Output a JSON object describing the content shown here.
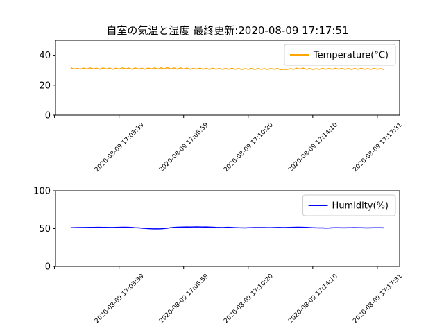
{
  "chart_data": [
    {
      "type": "line",
      "title": "自室の気温と湿度  最終更新:2020-08-09 17:17:51",
      "x": [
        0,
        1,
        2,
        3,
        4,
        5,
        6,
        7,
        8,
        9,
        10,
        11,
        12,
        13,
        14,
        15,
        16,
        17,
        18,
        19,
        20,
        21,
        22,
        23,
        24,
        25,
        26,
        27,
        28,
        29,
        30,
        31,
        32,
        33,
        34,
        35,
        36,
        37,
        38,
        39,
        40,
        41,
        42,
        43,
        44,
        45,
        46,
        47,
        48,
        49,
        50,
        51,
        52,
        53,
        54,
        55,
        56,
        57,
        58,
        59,
        60,
        61,
        62,
        63,
        64,
        65,
        66,
        67,
        68,
        69,
        70,
        71,
        72,
        73,
        74,
        75,
        76,
        77,
        78,
        79,
        80,
        81,
        82,
        83,
        84,
        85,
        86,
        87,
        88,
        89,
        90,
        91,
        92,
        93,
        94,
        95,
        96,
        97
      ],
      "series": [
        {
          "name": "Temperature(°C)",
          "color": "#ffa500",
          "values": [
            31.6,
            30.8,
            31.2,
            30.7,
            31.4,
            30.8,
            31.5,
            30.9,
            31.3,
            30.7,
            31.5,
            30.8,
            31.4,
            30.7,
            31.3,
            30.8,
            31.5,
            30.9,
            31.4,
            30.7,
            31.5,
            30.8,
            31.3,
            30.7,
            31.4,
            30.9,
            31.5,
            30.8,
            31.6,
            30.9,
            31.7,
            30.8,
            31.5,
            30.7,
            31.6,
            30.8,
            31.4,
            30.7,
            31.2,
            30.8,
            31.3,
            30.7,
            31.2,
            30.6,
            31.3,
            30.7,
            31.1,
            30.6,
            31.2,
            30.7,
            31.3,
            30.6,
            31.1,
            30.5,
            31.0,
            30.6,
            31.2,
            30.5,
            31.1,
            30.6,
            31.0,
            30.5,
            31.1,
            30.6,
            31.2,
            30.4,
            30.6,
            30.5,
            31.0,
            30.6,
            31.3,
            30.7,
            31.4,
            30.6,
            31.1,
            30.5,
            31.0,
            30.6,
            31.2,
            30.7,
            31.1,
            30.6,
            31.3,
            30.7,
            31.2,
            30.6,
            31.1,
            30.5,
            31.2,
            30.6,
            31.3,
            30.7,
            31.0,
            30.6,
            31.2,
            30.7,
            31.0,
            30.5
          ]
        }
      ],
      "xlim": [
        -4.7,
        101.9
      ],
      "xticks": [
        -5,
        15,
        35,
        55,
        75,
        95
      ],
      "xtick_labels": [
        null,
        "2020-08-09 17:03:39",
        "2020-08-09 17:06:59",
        "2020-08-09 17:10:20",
        "2020-08-09 17:14:10",
        "2020-08-09 17:17:31"
      ],
      "ylim": [
        0,
        50
      ],
      "yticks": [
        0,
        20,
        40
      ],
      "legend": "upper right"
    },
    {
      "type": "line",
      "x": [
        0,
        1,
        2,
        3,
        4,
        5,
        6,
        7,
        8,
        9,
        10,
        11,
        12,
        13,
        14,
        15,
        16,
        17,
        18,
        19,
        20,
        21,
        22,
        23,
        24,
        25,
        26,
        27,
        28,
        29,
        30,
        31,
        32,
        33,
        34,
        35,
        36,
        37,
        38,
        39,
        40,
        41,
        42,
        43,
        44,
        45,
        46,
        47,
        48,
        49,
        50,
        51,
        52,
        53,
        54,
        55,
        56,
        57,
        58,
        59,
        60,
        61,
        62,
        63,
        64,
        65,
        66,
        67,
        68,
        69,
        70,
        71,
        72,
        73,
        74,
        75,
        76,
        77,
        78,
        79,
        80,
        81,
        82,
        83,
        84,
        85,
        86,
        87,
        88,
        89,
        90,
        91,
        92,
        93,
        94,
        95,
        96,
        97
      ],
      "series": [
        {
          "name": "Humidity(%)",
          "color": "#0000ff",
          "values": [
            51.2,
            51.3,
            51.4,
            51.4,
            51.5,
            51.5,
            51.6,
            51.6,
            51.7,
            51.7,
            51.6,
            51.6,
            51.5,
            51.5,
            51.6,
            51.7,
            51.8,
            51.8,
            51.7,
            51.5,
            51.2,
            51.0,
            50.6,
            50.3,
            50.0,
            49.8,
            49.7,
            49.7,
            49.8,
            50.1,
            50.6,
            51.2,
            51.6,
            51.8,
            52.0,
            52.1,
            52.2,
            52.1,
            52.2,
            52.3,
            52.2,
            52.1,
            52.2,
            52.0,
            51.8,
            51.6,
            51.5,
            51.4,
            51.6,
            51.7,
            51.5,
            51.3,
            51.1,
            51.0,
            50.9,
            51.1,
            51.3,
            51.4,
            51.4,
            51.4,
            51.4,
            51.3,
            51.3,
            51.4,
            51.5,
            51.5,
            51.4,
            51.5,
            51.6,
            51.7,
            51.8,
            51.8,
            51.7,
            51.6,
            51.4,
            51.2,
            51.0,
            50.9,
            50.9,
            50.7,
            50.8,
            51.0,
            51.1,
            51.1,
            51.0,
            51.0,
            51.1,
            51.2,
            51.3,
            51.2,
            51.1,
            51.0,
            50.9,
            51.0,
            51.1,
            51.2,
            51.1,
            51.0
          ]
        }
      ],
      "xlim": [
        -4.7,
        101.9
      ],
      "xticks": [
        -5,
        15,
        35,
        55,
        75,
        95
      ],
      "xtick_labels": [
        null,
        "2020-08-09 17:03:39",
        "2020-08-09 17:06:59",
        "2020-08-09 17:10:20",
        "2020-08-09 17:14:10",
        "2020-08-09 17:17:31"
      ],
      "ylim": [
        0,
        100
      ],
      "yticks": [
        0,
        50,
        100
      ],
      "legend": "upper right"
    }
  ]
}
